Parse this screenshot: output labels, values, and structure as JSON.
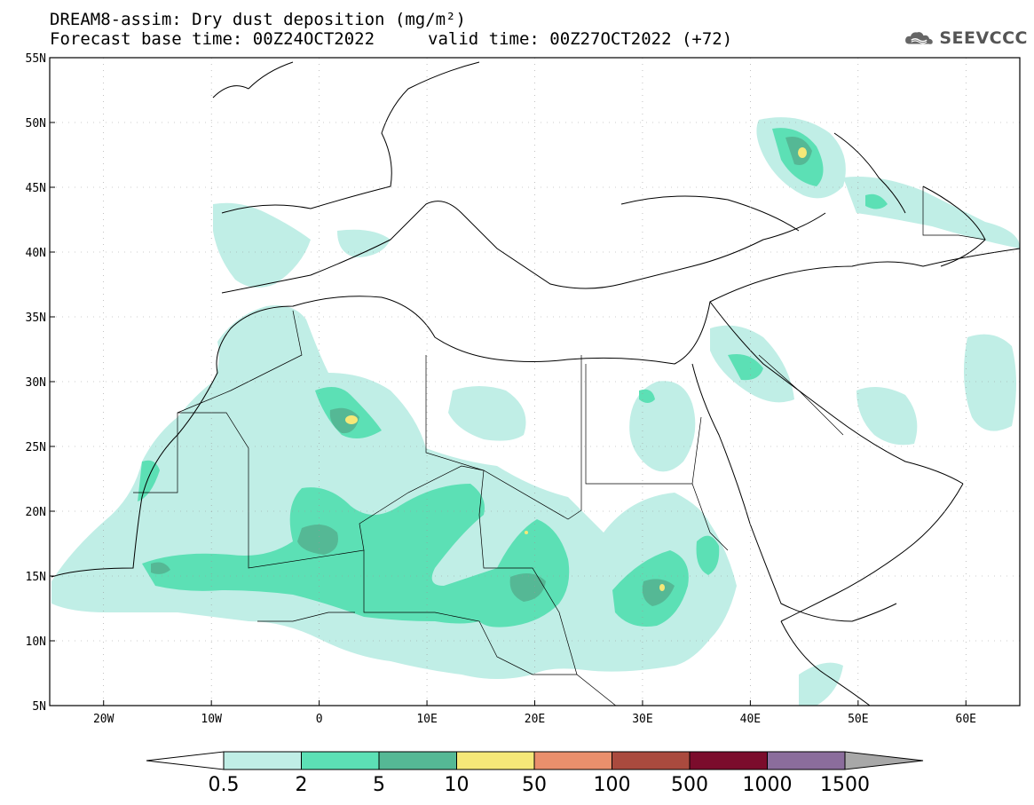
{
  "title": {
    "line1": "DREAM8-assim: Dry dust deposition (mg/m²)",
    "line2_left": "Forecast base time: 00Z24OCT2022",
    "line2_right": "valid time: 00Z27OCT2022 (+72)"
  },
  "logo": {
    "icon": "cloud-icon",
    "text": "SEEVCCC"
  },
  "axes": {
    "lat_labels": [
      "55N",
      "50N",
      "45N",
      "40N",
      "35N",
      "30N",
      "25N",
      "20N",
      "15N",
      "10N",
      "5N"
    ],
    "lon_labels": [
      "20W",
      "10W",
      "0",
      "10E",
      "20E",
      "30E",
      "40E",
      "50E",
      "60E"
    ],
    "lat_range": [
      5,
      55
    ],
    "lon_range": [
      -25,
      65
    ],
    "grid": "dotted"
  },
  "colorbar": {
    "labels": [
      "0.5",
      "2",
      "5",
      "10",
      "50",
      "100",
      "500",
      "1000",
      "1500"
    ],
    "colors": [
      "#c0eee6",
      "#5ce0b5",
      "#55b895",
      "#f5e878",
      "#ea8f6c",
      "#aa4a3e",
      "#7b0c2c",
      "#8b6d9c",
      "#a8a8a8"
    ]
  }
}
